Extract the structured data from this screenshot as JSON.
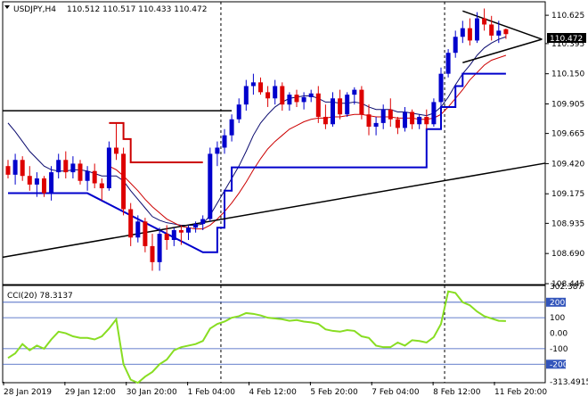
{
  "header": {
    "symbol": "USDJPY,H4",
    "quote": "110.512 110.517 110.433 110.472"
  },
  "indicator": {
    "label": "CCI(20) 78.3137"
  },
  "colors": {
    "bull": "#0000cc",
    "bear": "#dd0000",
    "ma_fast": "#0a0a6e",
    "ma_slow": "#cc0000",
    "support_blue": "#0000cc",
    "cci_line": "#88dd22",
    "level_line": "#3355bb",
    "trendline": "#000000"
  },
  "chart_data": [
    {
      "type": "candlestick",
      "title": "USDJPY,H4",
      "ylim": [
        108.445,
        110.72
      ],
      "y_ticks": [
        "110.625",
        "110.395",
        "110.150",
        "109.905",
        "109.665",
        "109.420",
        "109.175",
        "108.935",
        "108.690",
        "108.445"
      ],
      "x_ticks": [
        "28 Jan 2019",
        "29 Jan 12:00",
        "30 Jan 20:00",
        "1 Feb 04:00",
        "4 Feb 12:00",
        "5 Feb 20:00",
        "7 Feb 04:00",
        "8 Feb 12:00",
        "11 Feb 20:00"
      ],
      "last_price_label": "110.472",
      "last_price": 110.472,
      "candles": [
        [
          109.4,
          109.45,
          109.3,
          109.33
        ],
        [
          109.33,
          109.5,
          109.25,
          109.45
        ],
        [
          109.45,
          109.48,
          109.28,
          109.32
        ],
        [
          109.32,
          109.4,
          109.2,
          109.25
        ],
        [
          109.25,
          109.35,
          109.15,
          109.3
        ],
        [
          109.3,
          109.32,
          109.15,
          109.18
        ],
        [
          109.18,
          109.4,
          109.12,
          109.35
        ],
        [
          109.35,
          109.5,
          109.3,
          109.45
        ],
        [
          109.45,
          109.52,
          109.3,
          109.35
        ],
        [
          109.35,
          109.48,
          109.3,
          109.42
        ],
        [
          109.42,
          109.45,
          109.25,
          109.28
        ],
        [
          109.28,
          109.4,
          109.2,
          109.36
        ],
        [
          109.36,
          109.42,
          109.22,
          109.26
        ],
        [
          109.26,
          109.3,
          109.12,
          109.22
        ],
        [
          109.22,
          109.6,
          109.2,
          109.55
        ],
        [
          109.55,
          109.75,
          109.45,
          109.5
        ],
        [
          109.5,
          109.55,
          109.0,
          109.05
        ],
        [
          109.05,
          109.1,
          108.75,
          108.82
        ],
        [
          108.82,
          109.0,
          108.78,
          108.95
        ],
        [
          108.95,
          108.98,
          108.7,
          108.75
        ],
        [
          108.75,
          108.85,
          108.55,
          108.62
        ],
        [
          108.62,
          108.9,
          108.55,
          108.85
        ],
        [
          108.85,
          108.92,
          108.72,
          108.8
        ],
        [
          108.8,
          108.9,
          108.75,
          108.88
        ],
        [
          108.88,
          108.92,
          108.76,
          108.86
        ],
        [
          108.86,
          108.92,
          108.8,
          108.9
        ],
        [
          108.9,
          108.95,
          108.86,
          108.93
        ],
        [
          108.93,
          109.0,
          108.88,
          108.97
        ],
        [
          108.97,
          109.55,
          108.95,
          109.5
        ],
        [
          109.5,
          109.6,
          109.4,
          109.55
        ],
        [
          109.55,
          109.7,
          109.5,
          109.65
        ],
        [
          109.65,
          109.82,
          109.6,
          109.78
        ],
        [
          109.78,
          109.95,
          109.75,
          109.9
        ],
        [
          109.9,
          110.1,
          109.85,
          110.05
        ],
        [
          110.05,
          110.15,
          109.98,
          110.08
        ],
        [
          110.08,
          110.12,
          109.98,
          110.0
        ],
        [
          110.0,
          110.05,
          109.88,
          109.95
        ],
        [
          109.95,
          110.1,
          109.9,
          110.05
        ],
        [
          110.05,
          110.08,
          109.85,
          109.9
        ],
        [
          109.9,
          110.0,
          109.85,
          109.98
        ],
        [
          109.98,
          110.02,
          109.88,
          109.92
        ],
        [
          109.92,
          110.0,
          109.86,
          109.96
        ],
        [
          109.96,
          110.02,
          109.92,
          109.99
        ],
        [
          109.99,
          110.05,
          109.75,
          109.8
        ],
        [
          109.8,
          109.9,
          109.7,
          109.74
        ],
        [
          109.74,
          110.0,
          109.72,
          109.95
        ],
        [
          109.95,
          110.02,
          109.78,
          109.82
        ],
        [
          109.82,
          110.0,
          109.8,
          109.98
        ],
        [
          109.98,
          110.04,
          109.9,
          110.02
        ],
        [
          110.02,
          110.05,
          109.78,
          109.82
        ],
        [
          109.82,
          109.9,
          109.65,
          109.72
        ],
        [
          109.72,
          109.8,
          109.65,
          109.75
        ],
        [
          109.75,
          109.9,
          109.7,
          109.86
        ],
        [
          109.86,
          109.95,
          109.72,
          109.78
        ],
        [
          109.78,
          109.8,
          109.66,
          109.71
        ],
        [
          109.71,
          109.88,
          109.68,
          109.84
        ],
        [
          109.84,
          109.86,
          109.7,
          109.74
        ],
        [
          109.74,
          109.82,
          109.7,
          109.8
        ],
        [
          109.8,
          109.86,
          109.7,
          109.74
        ],
        [
          109.74,
          109.95,
          109.72,
          109.92
        ],
        [
          109.92,
          110.2,
          109.88,
          110.15
        ],
        [
          110.15,
          110.35,
          110.12,
          110.32
        ],
        [
          110.32,
          110.5,
          110.28,
          110.45
        ],
        [
          110.45,
          110.58,
          110.4,
          110.52
        ],
        [
          110.52,
          110.6,
          110.38,
          110.42
        ],
        [
          110.42,
          110.65,
          110.4,
          110.6
        ],
        [
          110.6,
          110.68,
          110.5,
          110.55
        ],
        [
          110.55,
          110.62,
          110.42,
          110.46
        ],
        [
          110.46,
          110.58,
          110.4,
          110.5
        ],
        [
          110.512,
          110.517,
          110.433,
          110.472
        ]
      ],
      "ma_fast": [
        109.75,
        109.68,
        109.6,
        109.52,
        109.46,
        109.4,
        109.37,
        109.36,
        109.36,
        109.37,
        109.37,
        109.36,
        109.34,
        109.32,
        109.32,
        109.32,
        109.28,
        109.2,
        109.13,
        109.06,
        108.99,
        108.96,
        108.94,
        108.93,
        108.92,
        108.92,
        108.92,
        108.93,
        109.0,
        109.1,
        109.2,
        109.3,
        109.4,
        109.52,
        109.65,
        109.75,
        109.82,
        109.88,
        109.92,
        109.95,
        109.96,
        109.97,
        109.97,
        109.95,
        109.92,
        109.92,
        109.91,
        109.91,
        109.92,
        109.91,
        109.88,
        109.86,
        109.86,
        109.86,
        109.84,
        109.84,
        109.83,
        109.82,
        109.81,
        109.83,
        109.88,
        109.96,
        110.06,
        110.15,
        110.22,
        110.3,
        110.36,
        110.4,
        110.43,
        110.45
      ],
      "ma_slow": [
        null,
        null,
        null,
        null,
        null,
        null,
        null,
        null,
        null,
        null,
        null,
        null,
        null,
        null,
        109.4,
        109.37,
        109.32,
        109.26,
        109.2,
        109.13,
        109.07,
        109.02,
        108.97,
        108.94,
        108.91,
        108.9,
        108.89,
        108.89,
        108.92,
        108.97,
        109.03,
        109.1,
        109.18,
        109.27,
        109.37,
        109.46,
        109.54,
        109.6,
        109.65,
        109.7,
        109.73,
        109.76,
        109.78,
        109.79,
        109.79,
        109.8,
        109.8,
        109.81,
        109.82,
        109.82,
        109.81,
        109.8,
        109.8,
        109.8,
        109.79,
        109.79,
        109.79,
        109.78,
        109.78,
        109.79,
        109.82,
        109.88,
        109.95,
        110.02,
        110.1,
        110.16,
        110.22,
        110.26,
        110.28,
        110.3
      ],
      "support_steps": [
        {
          "from": 0,
          "to": 11,
          "value": 109.18
        },
        {
          "from": 27,
          "to": 29,
          "value": 108.7
        },
        {
          "from": 29,
          "to": 30,
          "value": 108.9
        },
        {
          "from": 30,
          "to": 31,
          "value": 109.2
        },
        {
          "from": 31,
          "to": 58,
          "value": 109.39
        },
        {
          "from": 58,
          "to": 60,
          "value": 109.7
        },
        {
          "from": 60,
          "to": 62,
          "value": 109.88
        },
        {
          "from": 62,
          "to": 63,
          "value": 110.05
        },
        {
          "from": 63,
          "to": 69,
          "value": 110.15
        }
      ],
      "resistance_steps": [
        {
          "from": 14,
          "to": 16,
          "value": 109.75
        },
        {
          "from": 16,
          "to": 17,
          "value": 109.62
        },
        {
          "from": 17,
          "to": 27,
          "value": 109.43
        }
      ],
      "horizontal_line": 109.85,
      "trendline": {
        "from": [
          0,
          108.66
        ],
        "to": [
          80,
          109.48
        ]
      },
      "triangle": {
        "top": [
          [
            63,
            110.66
          ],
          [
            74,
            110.43
          ]
        ],
        "bottom": [
          [
            63,
            110.24
          ],
          [
            74,
            110.43
          ]
        ]
      },
      "separators": [
        29.5,
        60.5
      ]
    },
    {
      "type": "line",
      "title": "CCI(20) 78.3137",
      "ylim": [
        -313.4915,
        302.387
      ],
      "y_ticks": [
        "302.387",
        "200",
        "100",
        "0.00",
        "-100",
        "-200",
        "-313.4915"
      ],
      "levels": [
        200,
        100,
        -100,
        -200
      ],
      "values": [
        -160,
        -130,
        -70,
        -110,
        -80,
        -100,
        -40,
        10,
        0,
        -20,
        -30,
        -30,
        -40,
        -20,
        30,
        90,
        -200,
        -300,
        -320,
        -280,
        -250,
        -200,
        -170,
        -110,
        -90,
        -80,
        -70,
        -50,
        30,
        60,
        75,
        100,
        110,
        130,
        125,
        115,
        100,
        95,
        90,
        80,
        85,
        75,
        70,
        60,
        25,
        15,
        10,
        20,
        15,
        -20,
        -30,
        -80,
        -90,
        -90,
        -60,
        -80,
        -45,
        -50,
        -60,
        -25,
        60,
        270,
        260,
        200,
        180,
        140,
        110,
        95,
        80,
        78.3137
      ]
    }
  ]
}
